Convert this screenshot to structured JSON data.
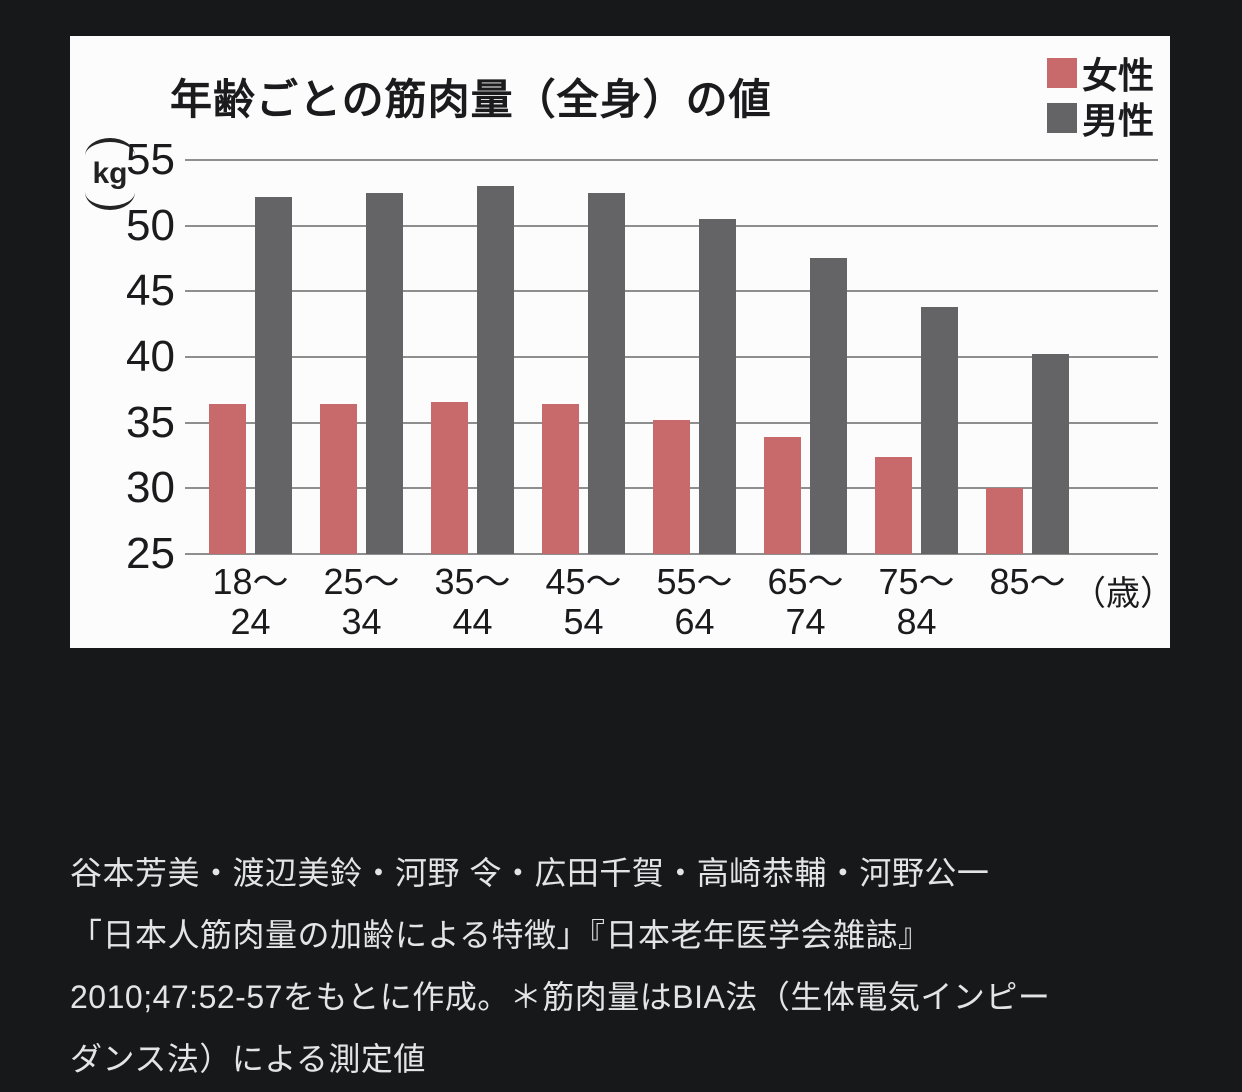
{
  "chart_data": {
    "type": "bar",
    "title": "年齢ごとの筋肉量（全身）の値",
    "ylabel": "kg",
    "xlabel": "",
    "x_unit": "（歳）",
    "ylim": [
      25,
      55
    ],
    "yticks": [
      55,
      50,
      45,
      40,
      35,
      30,
      25
    ],
    "grid": true,
    "legend_position": "top-right",
    "categories": [
      "18〜24",
      "25〜34",
      "35〜44",
      "45〜54",
      "55〜64",
      "65〜74",
      "75〜84",
      "85〜"
    ],
    "category_tick_lines": [
      [
        "18〜",
        "24"
      ],
      [
        "25〜",
        "34"
      ],
      [
        "35〜",
        "44"
      ],
      [
        "45〜",
        "54"
      ],
      [
        "55〜",
        "64"
      ],
      [
        "65〜",
        "74"
      ],
      [
        "75〜",
        "84"
      ],
      [
        "85〜",
        ""
      ]
    ],
    "series": [
      {
        "name": "女性",
        "color": "#c8696c",
        "values": [
          36.4,
          36.4,
          36.6,
          36.4,
          35.2,
          33.9,
          32.4,
          30.0
        ]
      },
      {
        "name": "男性",
        "color": "#646366",
        "values": [
          52.2,
          52.5,
          53.0,
          52.5,
          50.5,
          47.5,
          43.8,
          40.2
        ]
      }
    ]
  },
  "caption": {
    "lines": [
      "谷本芳美・渡辺美鈴・河野 令・広田千賀・高崎恭輔・河野公一",
      "「日本人筋肉量の加齢による特徴」『日本老年医学会雑誌』",
      "2010;47:52-57をもとに作成。＊筋肉量はBIA法（生体電気インピー",
      "ダンス法）による測定値"
    ]
  },
  "colors": {
    "female_bar": "#c8696c",
    "male_bar": "#646366",
    "gridline": "#8e8e8e",
    "panel_background": "#fcfcfc",
    "page_background": "#17181a",
    "chart_text": "#1b1b1d",
    "caption_text": "#e3e4e6"
  }
}
